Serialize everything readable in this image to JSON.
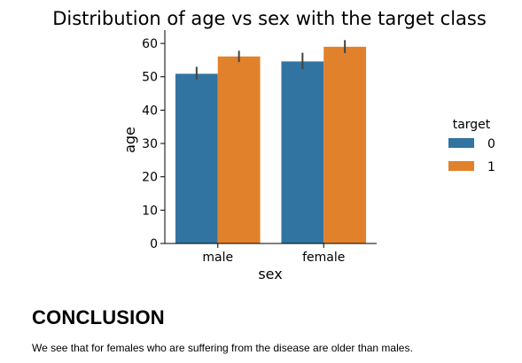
{
  "chart_data": {
    "type": "bar",
    "title": "Distribution of age vs sex with the target class",
    "xlabel": "sex",
    "ylabel": "age",
    "categories": [
      "male",
      "female"
    ],
    "ylim": [
      0,
      64
    ],
    "yticks": [
      0,
      10,
      20,
      30,
      40,
      50,
      60
    ],
    "grid": false,
    "legend_title": "target",
    "legend_position": "right",
    "series": [
      {
        "name": "0",
        "color": "#3274a1",
        "values": [
          50.9,
          54.6
        ],
        "ci_low": [
          49.2,
          52.3
        ],
        "ci_high": [
          53.0,
          57.2
        ]
      },
      {
        "name": "1",
        "color": "#e1812c",
        "values": [
          56.1,
          59.0
        ],
        "ci_low": [
          54.4,
          57.1
        ],
        "ci_high": [
          57.8,
          61.0
        ]
      }
    ]
  },
  "conclusion": {
    "heading": "CONCLUSION",
    "text": "We see that for females who are suffering from the disease are older than males."
  }
}
